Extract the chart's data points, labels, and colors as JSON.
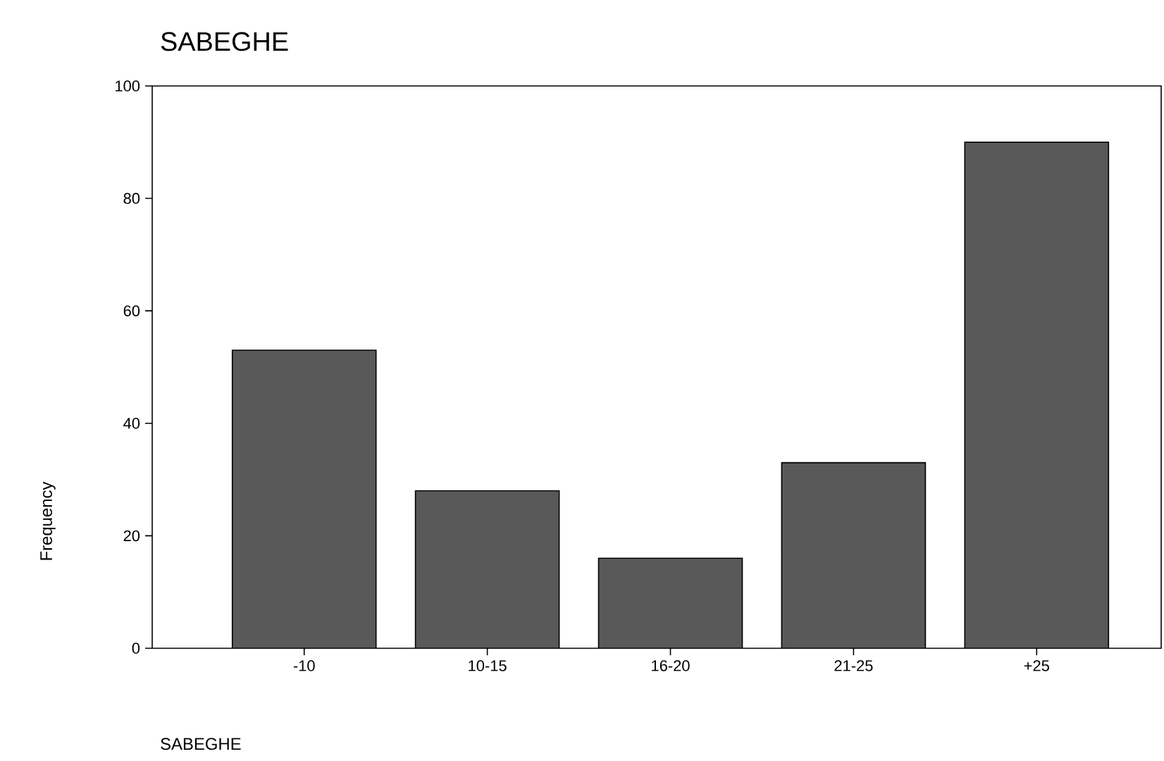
{
  "chart_data": {
    "type": "bar",
    "title": "SABEGHE",
    "xlabel": "SABEGHE",
    "ylabel": "Frequency",
    "categories": [
      "-10",
      "10-15",
      "16-20",
      "21-25",
      "+25"
    ],
    "values": [
      53,
      28,
      16,
      33,
      90
    ],
    "color": "#595959",
    "ylim": [
      0,
      100
    ],
    "yticks": [
      0,
      20,
      40,
      60,
      80,
      100
    ]
  }
}
